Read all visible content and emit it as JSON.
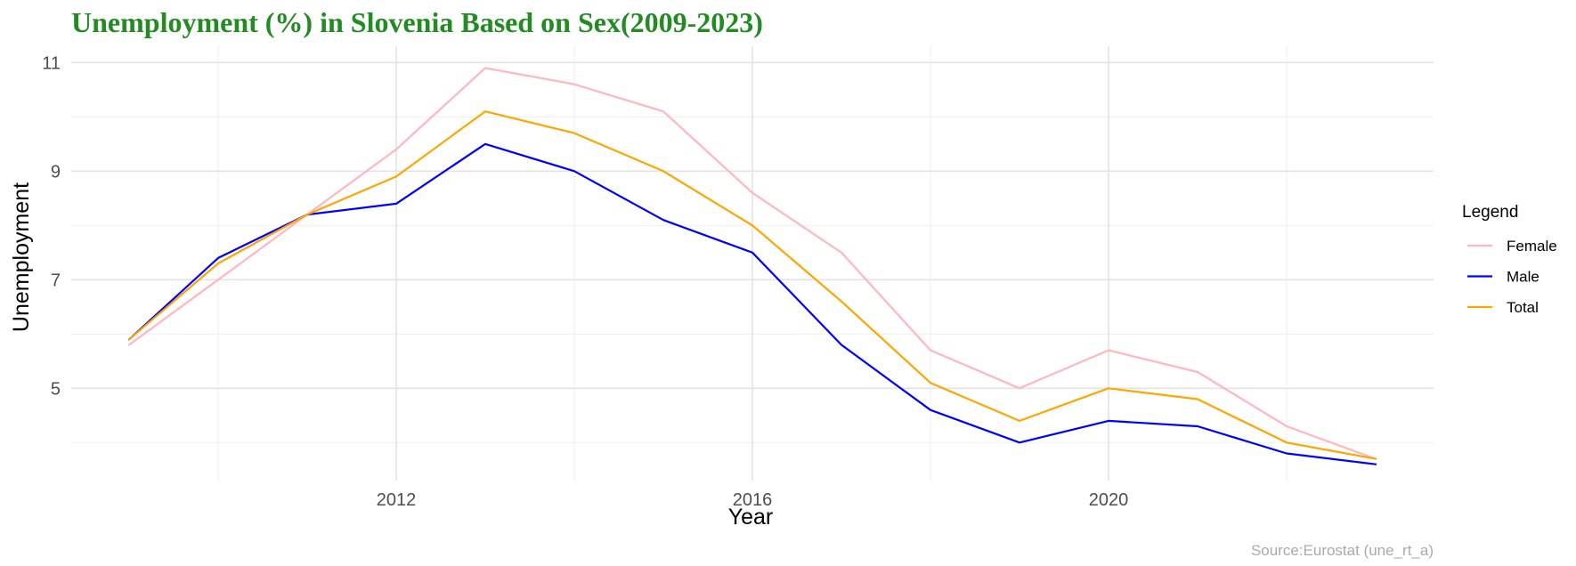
{
  "chart_data": {
    "type": "line",
    "title": "Unemployment (%) in Slovenia Based on Sex(2009-2023)",
    "title_color": "#228b22",
    "xlabel": "Year",
    "ylabel": "Unemployment",
    "caption": "Source:Eurostat (une_rt_a)",
    "x": [
      2009,
      2010,
      2011,
      2012,
      2013,
      2014,
      2015,
      2016,
      2017,
      2018,
      2019,
      2020,
      2021,
      2022,
      2023
    ],
    "x_ticks": [
      "2012",
      "2016",
      "2020"
    ],
    "y_ticks": [
      "5",
      "7",
      "9",
      "11"
    ],
    "xlim": [
      2008.35,
      2023.65
    ],
    "ylim": [
      3.3,
      11.3
    ],
    "grid": true,
    "legend": {
      "title": "Legend",
      "position": "right",
      "entries": [
        "Female",
        "Male",
        "Total"
      ]
    },
    "series": [
      {
        "name": "Female",
        "color": "#ffb6c1",
        "values": [
          5.8,
          7.0,
          8.2,
          9.4,
          10.9,
          10.6,
          10.1,
          8.6,
          7.5,
          5.7,
          5.0,
          5.7,
          5.3,
          4.3,
          3.7
        ]
      },
      {
        "name": "Male",
        "color": "#0000ff",
        "values": [
          5.9,
          7.4,
          8.2,
          8.4,
          9.5,
          9.0,
          8.1,
          7.5,
          5.8,
          4.6,
          4.0,
          4.4,
          4.3,
          3.8,
          3.6
        ]
      },
      {
        "name": "Total",
        "color": "#ffa500",
        "values": [
          5.9,
          7.3,
          8.2,
          8.9,
          10.1,
          9.7,
          9.0,
          8.0,
          6.6,
          5.1,
          4.4,
          5.0,
          4.8,
          4.0,
          3.7
        ]
      }
    ]
  }
}
